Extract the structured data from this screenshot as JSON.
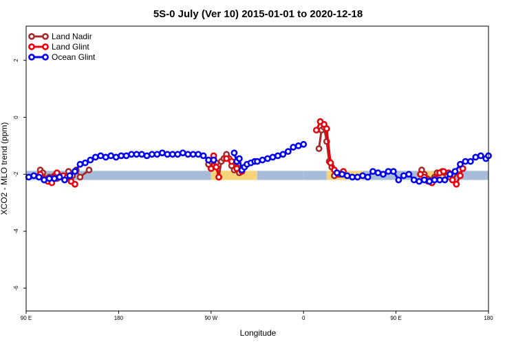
{
  "chart_data": {
    "type": "line",
    "title": "5S-0 July (Ver 10)   2015-01-01 to 2020-12-18",
    "xlabel": "Longitude",
    "ylabel": "XCO2 - MLO trend (ppm)",
    "xlim": [
      90,
      450
    ],
    "ylim": [
      -6.8,
      3.2
    ],
    "x_ticks": [
      {
        "value": 90,
        "label": "90 E"
      },
      {
        "value": 162,
        "label": "180"
      },
      {
        "value": 234,
        "label": "90 W"
      },
      {
        "value": 306,
        "label": "0"
      },
      {
        "value": 378,
        "label": "90 E"
      },
      {
        "value": 450,
        "label": "180"
      }
    ],
    "y_ticks": [
      {
        "value": 2,
        "label": "2"
      },
      {
        "value": 0,
        "label": "0"
      },
      {
        "value": -2,
        "label": "-2"
      },
      {
        "value": -4,
        "label": "-4"
      },
      {
        "value": -6,
        "label": "-6"
      }
    ],
    "grid": false,
    "legend_position": "top-left",
    "band": {
      "low": -2.2,
      "high": -1.88
    },
    "band_segments": [
      {
        "start": 90,
        "end": 234,
        "type": "ocean"
      },
      {
        "start": 234,
        "end": 270,
        "type": "land"
      },
      {
        "start": 270,
        "end": 306,
        "type": "ocean"
      },
      {
        "start": 306,
        "end": 324,
        "type": "ocean"
      },
      {
        "start": 324,
        "end": 352,
        "type": "land"
      },
      {
        "start": 352,
        "end": 398,
        "type": "ocean"
      },
      {
        "start": 398,
        "end": 415,
        "type": "land"
      },
      {
        "start": 415,
        "end": 450,
        "type": "ocean"
      }
    ],
    "band_colors": {
      "ocean": "#a8bcd9",
      "land": "#f6d57a"
    },
    "series": [
      {
        "name": "Land Nadir",
        "color": "#a52a2a",
        "segments": [
          {
            "x": [
              100,
              101,
              103,
              106,
              108,
              110,
              112,
              114,
              116
            ],
            "y": [
              -2.05,
              -1.85,
              -1.95,
              -2.2,
              -2.1,
              -2.25,
              -2.05,
              -2.15,
              -2.05
            ]
          },
          {
            "x": [
              123,
              126,
              129,
              132,
              139
            ],
            "y": [
              -1.9,
              -2.05,
              -1.85,
              -2.1,
              -1.85
            ]
          },
          {
            "x": [
              232,
              234,
              236,
              238,
              240,
              242,
              244,
              246
            ],
            "y": [
              -1.65,
              -1.55,
              -1.45,
              -1.6,
              -2.1,
              -1.55,
              -1.45,
              -1.4
            ]
          },
          {
            "x": [
              246,
              248,
              250,
              252,
              254,
              256,
              258
            ],
            "y": [
              -1.3,
              -1.45,
              -1.7,
              -1.85,
              -1.75,
              -1.95,
              -1.8
            ]
          },
          {
            "x": [
              318,
              320,
              322,
              324,
              326,
              328,
              330
            ],
            "y": [
              -1.1,
              -0.45,
              -0.35,
              -0.85,
              -1.55,
              -1.75,
              -2.05
            ]
          },
          {
            "x": [
              334,
              336
            ],
            "y": [
              -2.0,
              -1.95
            ]
          },
          {
            "x": [
              398,
              400,
              402,
              404,
              406,
              408,
              410
            ],
            "y": [
              -1.85,
              -2.0,
              -2.15,
              -2.2,
              -2.3,
              -2.1,
              -1.95
            ]
          },
          {
            "x": [
              414,
              416,
              418,
              420,
              422,
              427
            ],
            "y": [
              -1.9,
              -1.95,
              -2.05,
              -2.1,
              -2.2,
              -1.85
            ]
          }
        ]
      },
      {
        "name": "Land Glint",
        "color": "#e8000b",
        "segments": [
          {
            "x": [
              101,
              104,
              107,
              110,
              112,
              114
            ],
            "y": [
              -2.0,
              -2.15,
              -2.25,
              -2.3,
              -2.1,
              -1.95
            ]
          },
          {
            "x": [
              119,
              122,
              125,
              128
            ],
            "y": [
              -2.05,
              -2.1,
              -2.25,
              -2.35
            ]
          },
          {
            "x": [
              234,
              236,
              238,
              240
            ],
            "y": [
              -1.8,
              -1.35,
              -1.75,
              -2.1
            ]
          },
          {
            "x": [
              246,
              250,
              254,
              258
            ],
            "y": [
              -1.45,
              -1.55,
              -1.8,
              -1.9
            ]
          },
          {
            "x": [
              316,
              319,
              322,
              324,
              327,
              330,
              333,
              337
            ],
            "y": [
              -0.45,
              -0.15,
              -0.25,
              -0.4,
              -1.6,
              -1.85,
              -2.0,
              -1.9
            ]
          },
          {
            "x": [
              397,
              400,
              403,
              406,
              409,
              412,
              415
            ],
            "y": [
              -2.0,
              -2.1,
              -2.25,
              -2.3,
              -2.15,
              -1.95,
              -1.9
            ]
          },
          {
            "x": [
              419,
              422,
              425,
              428,
              430
            ],
            "y": [
              -1.95,
              -2.2,
              -2.35,
              -2.05,
              -1.8
            ]
          }
        ]
      },
      {
        "name": "Ocean Glint",
        "color": "#0000ee",
        "segments": [
          {
            "x": [
              92,
              96,
              100,
              104,
              108,
              112,
              116,
              120,
              124,
              128,
              132,
              136,
              140,
              144,
              148,
              152,
              156,
              160,
              164,
              168,
              172,
              176,
              180,
              184,
              188,
              192,
              196,
              200,
              204,
              208,
              212,
              216,
              220,
              224,
              228,
              232,
              236
            ],
            "y": [
              -2.1,
              -2.05,
              -2.1,
              -2.2,
              -2.15,
              -2.15,
              -2.1,
              -2.2,
              -2.05,
              -1.9,
              -1.65,
              -1.6,
              -1.5,
              -1.4,
              -1.35,
              -1.4,
              -1.35,
              -1.4,
              -1.35,
              -1.35,
              -1.3,
              -1.3,
              -1.3,
              -1.35,
              -1.3,
              -1.3,
              -1.25,
              -1.3,
              -1.3,
              -1.3,
              -1.25,
              -1.3,
              -1.3,
              -1.3,
              -1.35,
              -1.5,
              -1.5
            ]
          },
          {
            "x": [
              252,
              254,
              256,
              258,
              260,
              262,
              265,
              268
            ],
            "y": [
              -1.25,
              -1.55,
              -1.45,
              -1.85,
              -1.75,
              -1.65,
              -1.6,
              -1.55
            ]
          },
          {
            "x": [
              270,
              274,
              278,
              282,
              286,
              290,
              294,
              298,
              302,
              306
            ],
            "y": [
              -1.55,
              -1.5,
              -1.45,
              -1.4,
              -1.35,
              -1.3,
              -1.2,
              -1.05,
              -1.0,
              -0.95
            ]
          },
          {
            "x": [
              332,
              336,
              340,
              344,
              348,
              352,
              356,
              360,
              364,
              368,
              372,
              376,
              380,
              384,
              388,
              392,
              396
            ],
            "y": [
              -1.95,
              -2.0,
              -2.05,
              -2.1,
              -2.1,
              -2.05,
              -2.1,
              -1.9,
              -1.95,
              -2.0,
              -1.9,
              -1.9,
              -2.2,
              -2.05,
              -2.0,
              -2.2,
              -2.25
            ]
          },
          {
            "x": [
              400,
              404,
              408,
              412,
              416,
              420,
              424,
              428,
              432,
              436,
              440,
              444,
              448,
              450
            ],
            "y": [
              -2.2,
              -2.25,
              -2.2,
              -2.2,
              -2.2,
              -2.0,
              -1.9,
              -1.65,
              -1.55,
              -1.55,
              -1.4,
              -1.35,
              -1.45,
              -1.35
            ]
          }
        ]
      }
    ]
  }
}
